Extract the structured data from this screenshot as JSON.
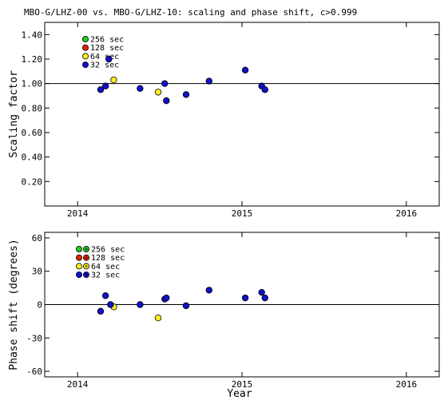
{
  "title": "MBO-G/LHZ-00 vs. MBO-G/LHZ-10: scaling and phase shift, c>0.999",
  "colors": {
    "256 sec": "#22cc22",
    "128 sec": "#dd2200",
    "64 sec": "#ffee22",
    "32 sec": "#1111cc"
  },
  "chart_data": [
    {
      "type": "scatter",
      "ylabel": "Scaling factor",
      "xlabel": "",
      "xlim": [
        2013.8,
        2016.2
      ],
      "ylim": [
        0.0,
        1.5
      ],
      "x_ticks": [
        2014,
        2015,
        2016
      ],
      "x_tick_labels": [
        "2014",
        "2015",
        "2016"
      ],
      "y_ticks": [
        0.2,
        0.4,
        0.6,
        0.8,
        1.0,
        1.2,
        1.4
      ],
      "y_tick_labels": [
        "0.20",
        "0.40",
        "0.60",
        "0.80",
        "1.00",
        "1.20",
        "1.40"
      ],
      "reference_line": 1.0,
      "legend_entries": [
        "256 sec",
        "128 sec",
        "64 sec",
        "32 sec"
      ],
      "legend_marker_style": "single",
      "series": [
        {
          "name": "256 sec",
          "points": []
        },
        {
          "name": "128 sec",
          "points": []
        },
        {
          "name": "64 sec",
          "points": [
            [
              2014.22,
              1.03
            ],
            [
              2014.49,
              0.93
            ]
          ]
        },
        {
          "name": "32 sec",
          "points": [
            [
              2014.14,
              0.95
            ],
            [
              2014.17,
              0.98
            ],
            [
              2014.19,
              1.2
            ],
            [
              2014.38,
              0.96
            ],
            [
              2014.53,
              1.0
            ],
            [
              2014.54,
              0.86
            ],
            [
              2014.66,
              0.91
            ],
            [
              2014.8,
              1.02
            ],
            [
              2015.02,
              1.11
            ],
            [
              2015.12,
              0.98
            ],
            [
              2015.14,
              0.95
            ]
          ]
        }
      ]
    },
    {
      "type": "scatter",
      "ylabel": "Phase shift (degrees)",
      "xlabel": "Year",
      "xlim": [
        2013.8,
        2016.2
      ],
      "ylim": [
        -65,
        65
      ],
      "x_ticks": [
        2014,
        2015,
        2016
      ],
      "x_tick_labels": [
        "2014",
        "2015",
        "2016"
      ],
      "y_ticks": [
        -60,
        -30,
        0,
        30,
        60
      ],
      "y_tick_labels": [
        "-60",
        "-30",
        "0",
        "30",
        "60"
      ],
      "reference_line": 0,
      "legend_entries": [
        "256 sec",
        "128 sec",
        "64 sec",
        "32 sec"
      ],
      "legend_marker_style": "double",
      "series": [
        {
          "name": "256 sec",
          "points": []
        },
        {
          "name": "128 sec",
          "points": []
        },
        {
          "name": "64 sec",
          "points": [
            [
              2014.22,
              -2
            ],
            [
              2014.49,
              -12
            ]
          ]
        },
        {
          "name": "32 sec",
          "points": [
            [
              2014.14,
              -6
            ],
            [
              2014.17,
              8
            ],
            [
              2014.2,
              0
            ],
            [
              2014.38,
              0
            ],
            [
              2014.53,
              5
            ],
            [
              2014.54,
              6
            ],
            [
              2014.66,
              -1
            ],
            [
              2014.8,
              13
            ],
            [
              2015.02,
              6
            ],
            [
              2015.12,
              11
            ],
            [
              2015.14,
              6
            ]
          ]
        }
      ]
    }
  ]
}
